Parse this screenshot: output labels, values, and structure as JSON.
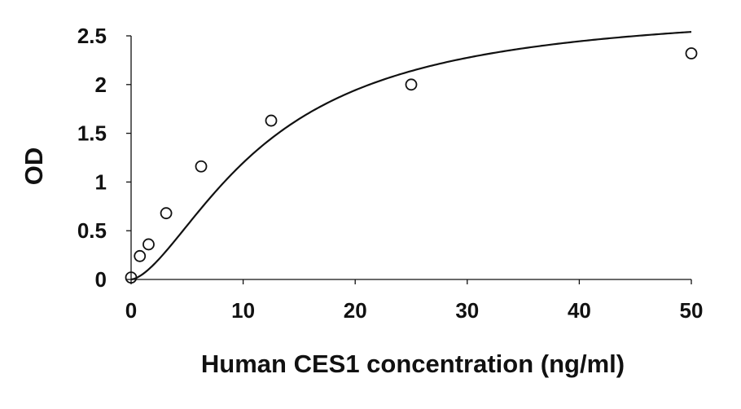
{
  "chart_data": {
    "type": "scatter",
    "title": "",
    "xlabel": "Human CES1 concentration (ng/ml)",
    "ylabel": "OD",
    "xlim": [
      0,
      50
    ],
    "ylim": [
      0,
      2.5
    ],
    "x_ticks": [
      0,
      10,
      20,
      30,
      40,
      50
    ],
    "y_ticks": [
      0,
      0.5,
      1,
      1.5,
      2,
      2.5
    ],
    "x_tick_labels": [
      "0",
      "10",
      "20",
      "30",
      "40",
      "50"
    ],
    "y_tick_labels": [
      "0",
      "0.5",
      "1",
      "1.5",
      "2",
      "2.5"
    ],
    "grid": false,
    "legend": "none",
    "series": [
      {
        "marker": "open-circle",
        "fit_line": "smooth-curve",
        "x": [
          0,
          0.78,
          1.56,
          3.13,
          6.25,
          12.5,
          25,
          50
        ],
        "y": [
          0.02,
          0.24,
          0.36,
          0.68,
          1.16,
          1.63,
          2.0,
          2.32
        ]
      }
    ],
    "colors": {
      "axis": "#111111",
      "marker": "#111111",
      "curve": "#111111",
      "background": "#ffffff"
    }
  }
}
